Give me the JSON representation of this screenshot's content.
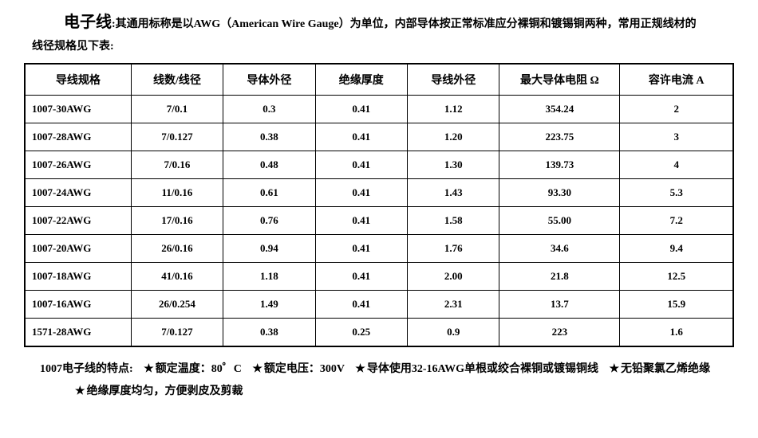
{
  "intro": {
    "title_word": "电子线",
    "body_text": ":其通用标称是以AWG（American Wire Gauge）为单位，内部导体按正常标准应分裸铜和镀锡铜两种，常用正规线材的",
    "line2": "线径规格见下表:"
  },
  "table": {
    "columns": [
      "导线规格",
      "线数/线径",
      "导体外径",
      "绝缘厚度",
      "导线外径",
      "最大导体电阻 Ω",
      "容许电流 A"
    ],
    "col_widths": [
      "15%",
      "13%",
      "13%",
      "13%",
      "13%",
      "17%",
      "16%"
    ],
    "rows": [
      [
        "1007-30AWG",
        "7/0.1",
        "0.3",
        "0.41",
        "1.12",
        "354.24",
        "2"
      ],
      [
        "1007-28AWG",
        "7/0.127",
        "0.38",
        "0.41",
        "1.20",
        "223.75",
        "3"
      ],
      [
        "1007-26AWG",
        "7/0.16",
        "0.48",
        "0.41",
        "1.30",
        "139.73",
        "4"
      ],
      [
        "1007-24AWG",
        "11/0.16",
        "0.61",
        "0.41",
        "1.43",
        "93.30",
        "5.3"
      ],
      [
        "1007-22AWG",
        "17/0.16",
        "0.76",
        "0.41",
        "1.58",
        "55.00",
        "7.2"
      ],
      [
        "1007-20AWG",
        "26/0.16",
        "0.94",
        "0.41",
        "1.76",
        "34.6",
        "9.4"
      ],
      [
        "1007-18AWG",
        "41/0.16",
        "1.18",
        "0.41",
        "2.00",
        "21.8",
        "12.5"
      ],
      [
        "1007-16AWG",
        "26/0.254",
        "1.49",
        "0.41",
        "2.31",
        "13.7",
        "15.9"
      ],
      [
        "1571-28AWG",
        "7/0.127",
        "0.38",
        "0.25",
        "0.9",
        "223",
        "1.6"
      ]
    ]
  },
  "footer": {
    "lead": "1007电子线的特点:",
    "items": [
      "额定温度：80゜C",
      "额定电压：300V",
      "导体使用32-16AWG单根或绞合裸铜或镀锡铜线",
      "无铅聚氯乙烯绝缘",
      "绝缘厚度均匀，方便剥皮及剪裁"
    ],
    "star": "★"
  },
  "styling": {
    "bg_color": "#ffffff",
    "text_color": "#000000",
    "border_color": "#000000",
    "header_font_size": 14,
    "cell_font_size": 13,
    "title_font_size": 20
  }
}
